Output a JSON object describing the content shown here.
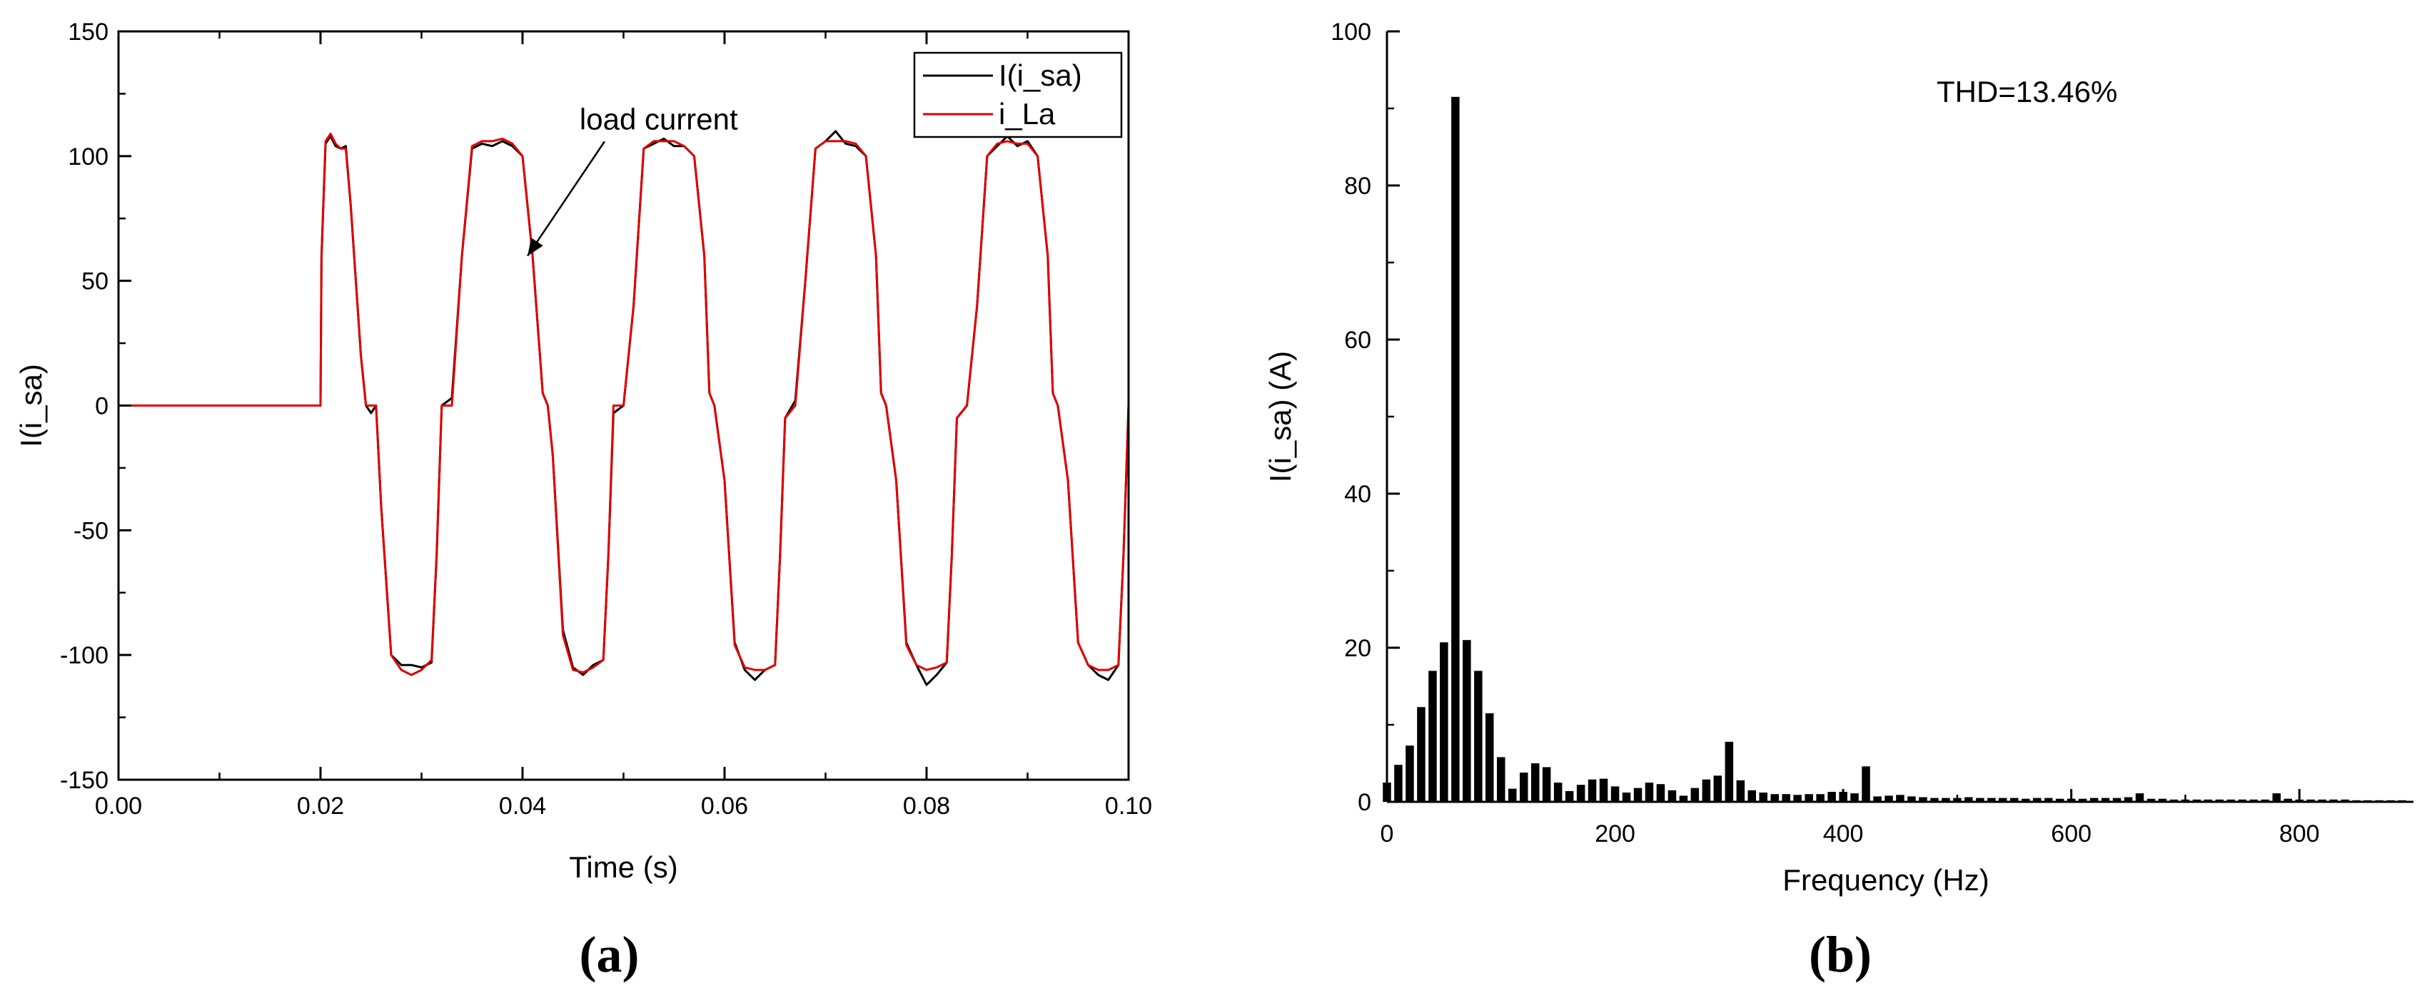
{
  "chart_data": [
    {
      "type": "line",
      "panel_label": "(a)",
      "xlabel": "Time (s)",
      "ylabel": "I(i_sa)",
      "xlim": [
        0,
        0.1
      ],
      "ylim": [
        -150,
        150
      ],
      "xticks": [
        0.0,
        0.02,
        0.04,
        0.06,
        0.08,
        0.1
      ],
      "xtick_labels": [
        "0.00",
        "0.02",
        "0.04",
        "0.06",
        "0.08",
        "0.10"
      ],
      "yticks": [
        -150,
        -100,
        -50,
        0,
        50,
        100,
        150
      ],
      "ytick_labels": [
        "-150",
        "-100",
        "-50",
        "0",
        "50",
        "100",
        "150"
      ],
      "legend": {
        "placement": "top-right",
        "entries": [
          "I(i_sa)",
          "i_La"
        ]
      },
      "annotations": [
        {
          "text": "load current",
          "x": 0.046,
          "y": 113,
          "arrow_to": [
            0.0405,
            60
          ]
        }
      ],
      "grid": false,
      "series": [
        {
          "name": "I(i_sa)",
          "color": "#000000",
          "x": [
            0,
            0.02,
            0.0201,
            0.0205,
            0.021,
            0.0215,
            0.022,
            0.0225,
            0.023,
            0.024,
            0.0245,
            0.025,
            0.0255,
            0.026,
            0.027,
            0.028,
            0.029,
            0.03,
            0.031,
            0.0315,
            0.032,
            0.033,
            0.034,
            0.035,
            0.036,
            0.037,
            0.038,
            0.039,
            0.04,
            0.041,
            0.042,
            0.0425,
            0.043,
            0.044,
            0.045,
            0.046,
            0.047,
            0.048,
            0.0485,
            0.049,
            0.05,
            0.051,
            0.052,
            0.053,
            0.054,
            0.055,
            0.056,
            0.057,
            0.058,
            0.0585,
            0.059,
            0.06,
            0.061,
            0.062,
            0.063,
            0.064,
            0.065,
            0.0655,
            0.066,
            0.067,
            0.068,
            0.069,
            0.07,
            0.071,
            0.072,
            0.073,
            0.074,
            0.075,
            0.0755,
            0.076,
            0.077,
            0.078,
            0.079,
            0.08,
            0.081,
            0.082,
            0.0825,
            0.083,
            0.084,
            0.085,
            0.086,
            0.087,
            0.088,
            0.089,
            0.09,
            0.091,
            0.092,
            0.0925,
            0.093,
            0.094,
            0.095,
            0.096,
            0.097,
            0.098,
            0.099,
            0.0995,
            0.1
          ],
          "y": [
            0,
            0,
            60,
            105,
            108,
            104,
            103,
            104,
            80,
            20,
            0,
            -3,
            0,
            -40,
            -100,
            -104,
            -104,
            -105,
            -103,
            -60,
            0,
            3,
            60,
            103,
            105,
            104,
            106,
            104,
            100,
            60,
            5,
            0,
            -20,
            -90,
            -105,
            -108,
            -104,
            -102,
            -60,
            -3,
            0,
            40,
            103,
            105,
            107,
            104,
            104,
            100,
            60,
            5,
            0,
            -30,
            -95,
            -106,
            -110,
            -106,
            -104,
            -60,
            -5,
            2,
            50,
            103,
            106,
            110,
            105,
            104,
            100,
            60,
            5,
            0,
            -30,
            -95,
            -104,
            -112,
            -108,
            -103,
            -60,
            -5,
            0,
            40,
            100,
            104,
            108,
            104,
            106,
            100,
            60,
            5,
            0,
            -30,
            -95,
            -104,
            -108,
            -110,
            -104,
            -60,
            0
          ]
        },
        {
          "name": "i_La",
          "color": "#e00000",
          "x": [
            0,
            0.02,
            0.0201,
            0.0205,
            0.021,
            0.0215,
            0.022,
            0.0225,
            0.023,
            0.024,
            0.0245,
            0.025,
            0.0255,
            0.026,
            0.027,
            0.028,
            0.029,
            0.03,
            0.031,
            0.0315,
            0.032,
            0.033,
            0.034,
            0.035,
            0.036,
            0.037,
            0.038,
            0.039,
            0.04,
            0.041,
            0.042,
            0.0425,
            0.043,
            0.044,
            0.045,
            0.046,
            0.047,
            0.048,
            0.0485,
            0.049,
            0.05,
            0.051,
            0.052,
            0.053,
            0.054,
            0.055,
            0.056,
            0.057,
            0.058,
            0.0585,
            0.059,
            0.06,
            0.061,
            0.062,
            0.063,
            0.064,
            0.065,
            0.0655,
            0.066,
            0.067,
            0.068,
            0.069,
            0.07,
            0.071,
            0.072,
            0.073,
            0.074,
            0.075,
            0.0755,
            0.076,
            0.077,
            0.078,
            0.079,
            0.08,
            0.081,
            0.082,
            0.0825,
            0.083,
            0.084,
            0.085,
            0.086,
            0.087,
            0.088,
            0.089,
            0.09,
            0.091,
            0.092,
            0.0925,
            0.093,
            0.094,
            0.095,
            0.096,
            0.097,
            0.098,
            0.099,
            0.0995,
            0.1
          ],
          "y": [
            0,
            0,
            60,
            106,
            109,
            105,
            103,
            103,
            80,
            20,
            0,
            0,
            0,
            -40,
            -100,
            -106,
            -108,
            -106,
            -102,
            -60,
            0,
            0,
            60,
            104,
            106,
            106,
            107,
            105,
            100,
            60,
            5,
            0,
            -20,
            -92,
            -106,
            -107,
            -105,
            -102,
            -60,
            0,
            0,
            40,
            103,
            106,
            106,
            106,
            104,
            100,
            60,
            5,
            0,
            -30,
            -96,
            -105,
            -106,
            -106,
            -104,
            -60,
            -5,
            0,
            50,
            103,
            106,
            106,
            106,
            105,
            100,
            60,
            5,
            0,
            -30,
            -96,
            -104,
            -106,
            -105,
            -103,
            -60,
            -5,
            0,
            40,
            100,
            105,
            106,
            105,
            105,
            100,
            60,
            5,
            0,
            -30,
            -95,
            -104,
            -106,
            -106,
            -104,
            -60,
            0
          ]
        }
      ]
    },
    {
      "type": "bar",
      "panel_label": "(b)",
      "xlabel": "Frequency (Hz)",
      "ylabel": "I(i_sa) (A)",
      "xlim": [
        0,
        900
      ],
      "ylim": [
        0,
        100
      ],
      "xticks": [
        0,
        200,
        400,
        600,
        800
      ],
      "xtick_labels": [
        "0",
        "200",
        "400",
        "600",
        "800"
      ],
      "yticks": [
        0,
        20,
        40,
        60,
        80,
        100
      ],
      "ytick_labels": [
        "0",
        "20",
        "40",
        "60",
        "80",
        "100"
      ],
      "annotation": "THD=13.46%",
      "grid": false,
      "color": "#000000",
      "series": [
        {
          "x": [
            0,
            10,
            20,
            30,
            40,
            50,
            60,
            70,
            80,
            90,
            100,
            110,
            120,
            130,
            140,
            150,
            160,
            170,
            180,
            190,
            200,
            210,
            220,
            230,
            240,
            250,
            260,
            270,
            280,
            290,
            300,
            310,
            320,
            330,
            340,
            350,
            360,
            370,
            380,
            390,
            400,
            410,
            420,
            430,
            440,
            450,
            460,
            470,
            480,
            490,
            500,
            510,
            520,
            530,
            540,
            550,
            560,
            570,
            580,
            590,
            600,
            610,
            620,
            630,
            640,
            650,
            660,
            670,
            680,
            690,
            700,
            710,
            720,
            730,
            740,
            750,
            760,
            770,
            780,
            790,
            800,
            810,
            820,
            830,
            840,
            850,
            860,
            870,
            880,
            890
          ],
          "values": [
            2.5,
            4.8,
            7.3,
            12.3,
            17.0,
            20.7,
            91.5,
            21.0,
            17.0,
            11.5,
            5.8,
            1.7,
            3.8,
            5.0,
            4.5,
            2.5,
            1.4,
            2.2,
            2.9,
            3.0,
            2.0,
            1.2,
            1.8,
            2.5,
            2.3,
            1.5,
            0.8,
            1.8,
            2.9,
            3.4,
            7.8,
            2.8,
            1.5,
            1.2,
            1.0,
            1.0,
            0.9,
            1.0,
            1.0,
            1.3,
            1.3,
            1.1,
            4.6,
            0.7,
            0.8,
            0.9,
            0.7,
            0.6,
            0.5,
            0.5,
            0.5,
            0.6,
            0.5,
            0.5,
            0.5,
            0.5,
            0.4,
            0.5,
            0.5,
            0.4,
            0.4,
            0.4,
            0.5,
            0.5,
            0.5,
            0.6,
            1.1,
            0.4,
            0.4,
            0.3,
            0.3,
            0.3,
            0.3,
            0.3,
            0.3,
            0.3,
            0.3,
            0.3,
            1.1,
            0.4,
            0.3,
            0.3,
            0.3,
            0.3,
            0.3,
            0.2,
            0.2,
            0.2,
            0.2,
            0.2
          ]
        }
      ]
    }
  ]
}
